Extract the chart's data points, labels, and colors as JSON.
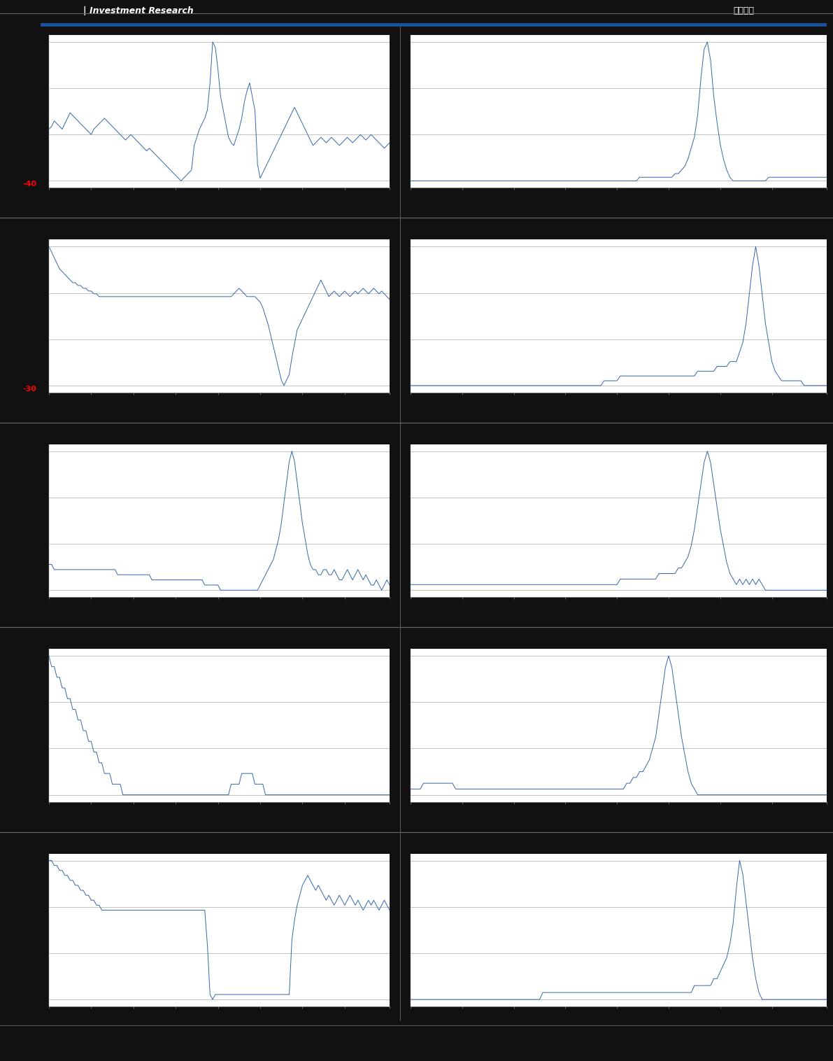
{
  "bg_color": "#111111",
  "chart_bg": "#ffffff",
  "line_color": "#3366aa",
  "line_width": 0.7,
  "header_line_color": "#2255aa",
  "sep_line_color": "#555555",
  "footer_bar_color": "#3a5a8c",
  "charts": [
    {
      "row": 0,
      "col": 0,
      "red_label": "-40",
      "data": [
        8,
        9,
        11,
        10,
        9,
        8,
        10,
        12,
        14,
        13,
        12,
        11,
        10,
        9,
        8,
        7,
        6,
        8,
        9,
        10,
        11,
        12,
        11,
        10,
        9,
        8,
        7,
        6,
        5,
        4,
        5,
        6,
        5,
        4,
        3,
        2,
        1,
        0,
        1,
        0,
        -1,
        -2,
        -3,
        -4,
        -5,
        -6,
        -7,
        -8,
        -9,
        -10,
        -11,
        -10,
        -9,
        -8,
        -7,
        2,
        5,
        8,
        10,
        12,
        15,
        25,
        40,
        38,
        30,
        20,
        15,
        10,
        5,
        3,
        2,
        5,
        8,
        12,
        18,
        22,
        25,
        20,
        15,
        -5,
        -10,
        -8,
        -6,
        -4,
        -2,
        0,
        2,
        4,
        6,
        8,
        10,
        12,
        14,
        16,
        14,
        12,
        10,
        8,
        6,
        4,
        2,
        3,
        4,
        5,
        4,
        3,
        4,
        5,
        4,
        3,
        2,
        3,
        4,
        5,
        4,
        3,
        4,
        5,
        6,
        5,
        4,
        5,
        6,
        5,
        4,
        3,
        2,
        1,
        2,
        3
      ]
    },
    {
      "row": 0,
      "col": 1,
      "red_label": "",
      "data": [
        2,
        2,
        2,
        2,
        2,
        2,
        2,
        2,
        2,
        2,
        2,
        2,
        2,
        2,
        2,
        2,
        2,
        2,
        2,
        2,
        2,
        2,
        2,
        2,
        2,
        2,
        2,
        2,
        2,
        2,
        2,
        2,
        2,
        2,
        2,
        2,
        2,
        2,
        2,
        2,
        2,
        2,
        2,
        2,
        2,
        2,
        2,
        2,
        2,
        2,
        2,
        2,
        2,
        2,
        2,
        2,
        2,
        2,
        2,
        2,
        2,
        2,
        2,
        2,
        2,
        2,
        2,
        2,
        2,
        2,
        2,
        3,
        3,
        3,
        3,
        3,
        3,
        3,
        3,
        3,
        3,
        3,
        4,
        4,
        5,
        6,
        8,
        11,
        14,
        20,
        30,
        38,
        40,
        35,
        25,
        18,
        12,
        8,
        5,
        3,
        2,
        2,
        2,
        2,
        2,
        2,
        2,
        2,
        2,
        2,
        2,
        3,
        3,
        3,
        3,
        3,
        3,
        3,
        3,
        3,
        3,
        3,
        3,
        3,
        3,
        3,
        3,
        3,
        3,
        3
      ]
    },
    {
      "row": 1,
      "col": 0,
      "red_label": "-30",
      "data": [
        20,
        18,
        16,
        14,
        12,
        11,
        10,
        9,
        8,
        7,
        7,
        6,
        6,
        5,
        5,
        4,
        4,
        3,
        3,
        2,
        2,
        2,
        2,
        2,
        2,
        2,
        2,
        2,
        2,
        2,
        2,
        2,
        2,
        2,
        2,
        2,
        2,
        2,
        2,
        2,
        2,
        2,
        2,
        2,
        2,
        2,
        2,
        2,
        2,
        2,
        2,
        2,
        2,
        2,
        2,
        2,
        2,
        2,
        2,
        2,
        2,
        2,
        2,
        2,
        2,
        2,
        2,
        2,
        2,
        2,
        3,
        4,
        5,
        4,
        3,
        2,
        2,
        2,
        2,
        1,
        0,
        -2,
        -5,
        -8,
        -12,
        -16,
        -20,
        -24,
        -28,
        -30,
        -28,
        -26,
        -20,
        -15,
        -10,
        -8,
        -6,
        -4,
        -2,
        0,
        2,
        4,
        6,
        8,
        6,
        4,
        2,
        3,
        4,
        3,
        2,
        3,
        4,
        3,
        2,
        3,
        4,
        3,
        4,
        5,
        4,
        3,
        4,
        5,
        4,
        3,
        4,
        3,
        2,
        1
      ]
    },
    {
      "row": 1,
      "col": 1,
      "red_label": "",
      "data": [
        3,
        3,
        3,
        3,
        3,
        3,
        3,
        3,
        3,
        3,
        3,
        3,
        3,
        3,
        3,
        3,
        3,
        3,
        3,
        3,
        3,
        3,
        3,
        3,
        3,
        3,
        3,
        3,
        3,
        3,
        3,
        3,
        3,
        3,
        3,
        3,
        3,
        3,
        3,
        3,
        3,
        3,
        3,
        3,
        3,
        3,
        3,
        3,
        3,
        3,
        3,
        3,
        3,
        3,
        3,
        3,
        3,
        3,
        3,
        3,
        4,
        4,
        4,
        4,
        4,
        5,
        5,
        5,
        5,
        5,
        5,
        5,
        5,
        5,
        5,
        5,
        5,
        5,
        5,
        5,
        5,
        5,
        5,
        5,
        5,
        5,
        5,
        5,
        5,
        6,
        6,
        6,
        6,
        6,
        6,
        7,
        7,
        7,
        7,
        8,
        8,
        8,
        10,
        12,
        16,
        22,
        28,
        32,
        28,
        22,
        16,
        12,
        8,
        6,
        5,
        4,
        4,
        4,
        4,
        4,
        4,
        4,
        3,
        3,
        3,
        3,
        3,
        3,
        3,
        3
      ]
    },
    {
      "row": 2,
      "col": 0,
      "red_label": "",
      "data": [
        6,
        6,
        5,
        5,
        5,
        5,
        5,
        5,
        5,
        5,
        5,
        5,
        5,
        5,
        5,
        5,
        5,
        5,
        5,
        5,
        5,
        5,
        5,
        5,
        5,
        5,
        4,
        4,
        4,
        4,
        4,
        4,
        4,
        4,
        4,
        4,
        4,
        4,
        4,
        3,
        3,
        3,
        3,
        3,
        3,
        3,
        3,
        3,
        3,
        3,
        3,
        3,
        3,
        3,
        3,
        3,
        3,
        3,
        3,
        2,
        2,
        2,
        2,
        2,
        2,
        1,
        1,
        1,
        1,
        1,
        1,
        1,
        1,
        1,
        1,
        1,
        1,
        1,
        1,
        1,
        2,
        3,
        4,
        5,
        6,
        7,
        9,
        11,
        14,
        18,
        22,
        26,
        28,
        26,
        22,
        18,
        14,
        11,
        8,
        6,
        5,
        5,
        4,
        4,
        5,
        5,
        4,
        4,
        5,
        4,
        3,
        3,
        4,
        5,
        4,
        3,
        4,
        5,
        4,
        3,
        4,
        3,
        2,
        2,
        3,
        2,
        1,
        2,
        3,
        2
      ]
    },
    {
      "row": 2,
      "col": 1,
      "red_label": "",
      "data": [
        4,
        4,
        4,
        4,
        4,
        4,
        4,
        4,
        4,
        4,
        4,
        4,
        4,
        4,
        4,
        4,
        4,
        4,
        4,
        4,
        4,
        4,
        4,
        4,
        4,
        4,
        4,
        4,
        4,
        4,
        4,
        4,
        4,
        4,
        4,
        4,
        4,
        4,
        4,
        4,
        4,
        4,
        4,
        4,
        4,
        4,
        4,
        4,
        4,
        4,
        4,
        4,
        4,
        4,
        4,
        4,
        4,
        4,
        4,
        4,
        4,
        4,
        4,
        4,
        4,
        5,
        5,
        5,
        5,
        5,
        5,
        5,
        5,
        5,
        5,
        5,
        5,
        6,
        6,
        6,
        6,
        6,
        6,
        7,
        7,
        8,
        9,
        11,
        14,
        18,
        22,
        26,
        28,
        26,
        22,
        18,
        14,
        11,
        8,
        6,
        5,
        4,
        5,
        4,
        5,
        4,
        5,
        4,
        5,
        4,
        3,
        3,
        3,
        3,
        3,
        3,
        3,
        3,
        3,
        3,
        3,
        3,
        3,
        3,
        3,
        3,
        3,
        3,
        3,
        3
      ]
    },
    {
      "row": 3,
      "col": 0,
      "red_label": "",
      "data": [
        18,
        17,
        17,
        16,
        16,
        15,
        15,
        14,
        14,
        13,
        13,
        12,
        12,
        11,
        11,
        10,
        10,
        9,
        9,
        8,
        8,
        7,
        7,
        7,
        6,
        6,
        6,
        6,
        5,
        5,
        5,
        5,
        5,
        5,
        5,
        5,
        5,
        5,
        5,
        5,
        5,
        5,
        5,
        5,
        5,
        5,
        5,
        5,
        5,
        5,
        5,
        5,
        5,
        5,
        5,
        5,
        5,
        5,
        5,
        5,
        5,
        5,
        5,
        5,
        5,
        5,
        5,
        5,
        5,
        6,
        6,
        6,
        6,
        7,
        7,
        7,
        7,
        7,
        6,
        6,
        6,
        6,
        5,
        5,
        5,
        5,
        5,
        5,
        5,
        5,
        5,
        5,
        5,
        5,
        5,
        5,
        5,
        5,
        5,
        5,
        5,
        5,
        5,
        5,
        5,
        5,
        5,
        5,
        5,
        5,
        5,
        5,
        5,
        5,
        5,
        5,
        5,
        5,
        5,
        5,
        5,
        5,
        5,
        5,
        5,
        5,
        5,
        5,
        5,
        5
      ]
    },
    {
      "row": 3,
      "col": 1,
      "red_label": "",
      "data": [
        5,
        5,
        5,
        5,
        6,
        6,
        6,
        6,
        6,
        6,
        6,
        6,
        6,
        6,
        5,
        5,
        5,
        5,
        5,
        5,
        5,
        5,
        5,
        5,
        5,
        5,
        5,
        5,
        5,
        5,
        5,
        5,
        5,
        5,
        5,
        5,
        5,
        5,
        5,
        5,
        5,
        5,
        5,
        5,
        5,
        5,
        5,
        5,
        5,
        5,
        5,
        5,
        5,
        5,
        5,
        5,
        5,
        5,
        5,
        5,
        5,
        5,
        5,
        5,
        5,
        5,
        5,
        6,
        6,
        7,
        7,
        8,
        8,
        9,
        10,
        12,
        14,
        18,
        22,
        26,
        28,
        26,
        22,
        18,
        14,
        11,
        8,
        6,
        5,
        4,
        4,
        4,
        4,
        4,
        4,
        4,
        4,
        4,
        4,
        4,
        4,
        4,
        4,
        4,
        4,
        4,
        4,
        4,
        4,
        4,
        4,
        4,
        4,
        4,
        4,
        4,
        4,
        4,
        4,
        4,
        4,
        4,
        4,
        4,
        4,
        4,
        4,
        4,
        4,
        4
      ]
    },
    {
      "row": 4,
      "col": 0,
      "red_label": "",
      "data": [
        12,
        12,
        11,
        11,
        10,
        10,
        9,
        9,
        8,
        8,
        7,
        7,
        6,
        6,
        5,
        5,
        4,
        4,
        3,
        3,
        2,
        2,
        2,
        2,
        2,
        2,
        2,
        2,
        2,
        2,
        2,
        2,
        2,
        2,
        2,
        2,
        2,
        2,
        2,
        2,
        2,
        2,
        2,
        2,
        2,
        2,
        2,
        2,
        2,
        2,
        2,
        2,
        2,
        2,
        2,
        2,
        2,
        2,
        2,
        2,
        -5,
        -15,
        -16,
        -15,
        -15,
        -15,
        -15,
        -15,
        -15,
        -15,
        -15,
        -15,
        -15,
        -15,
        -15,
        -15,
        -15,
        -15,
        -15,
        -15,
        -15,
        -15,
        -15,
        -15,
        -15,
        -15,
        -15,
        -15,
        -15,
        -15,
        -15,
        -15,
        -4,
        0,
        3,
        5,
        7,
        8,
        9,
        8,
        7,
        6,
        7,
        6,
        5,
        4,
        5,
        4,
        3,
        4,
        5,
        4,
        3,
        4,
        5,
        4,
        3,
        4,
        3,
        2,
        3,
        4,
        3,
        4,
        3,
        2,
        3,
        4,
        3,
        2
      ]
    },
    {
      "row": 4,
      "col": 1,
      "red_label": "",
      "data": [
        4,
        4,
        4,
        4,
        4,
        4,
        4,
        4,
        4,
        4,
        4,
        4,
        4,
        4,
        4,
        4,
        4,
        4,
        4,
        4,
        4,
        4,
        4,
        4,
        4,
        4,
        4,
        4,
        4,
        4,
        4,
        4,
        4,
        4,
        4,
        4,
        4,
        4,
        4,
        4,
        4,
        5,
        5,
        5,
        5,
        5,
        5,
        5,
        5,
        5,
        5,
        5,
        5,
        5,
        5,
        5,
        5,
        5,
        5,
        5,
        5,
        5,
        5,
        5,
        5,
        5,
        5,
        5,
        5,
        5,
        5,
        5,
        5,
        5,
        5,
        5,
        5,
        5,
        5,
        5,
        5,
        5,
        5,
        5,
        5,
        5,
        5,
        5,
        6,
        6,
        6,
        6,
        6,
        6,
        7,
        7,
        8,
        9,
        10,
        12,
        15,
        20,
        24,
        22,
        18,
        14,
        10,
        7,
        5,
        4,
        4,
        4,
        4,
        4,
        4,
        4,
        4,
        4,
        4,
        4,
        4,
        4,
        4,
        4,
        4,
        4,
        4,
        4,
        4,
        4
      ]
    }
  ]
}
